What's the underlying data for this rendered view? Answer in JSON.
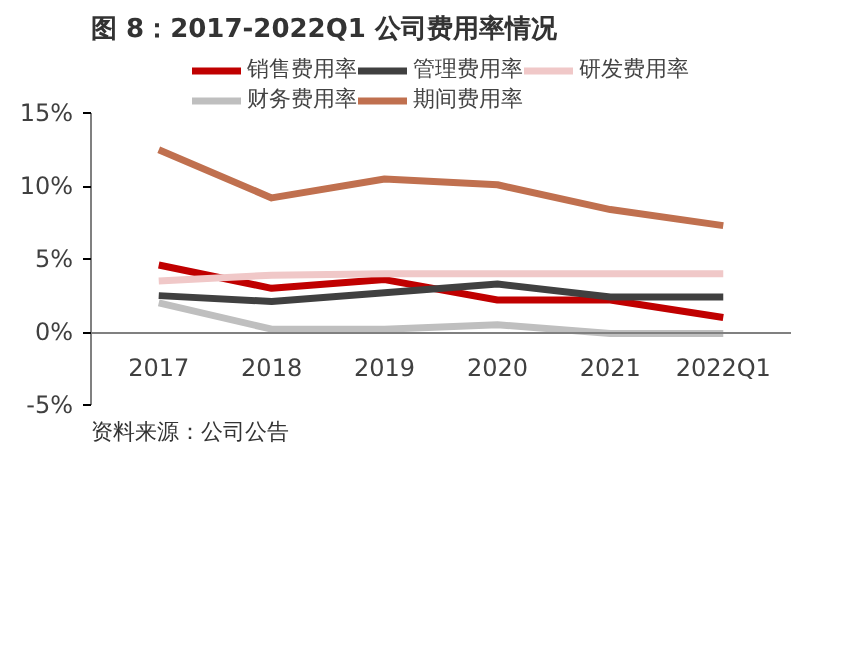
{
  "chart_data": {
    "type": "line",
    "title": "图 8：2017-2022Q1 公司费用率情况",
    "categories": [
      "2017",
      "2018",
      "2019",
      "2020",
      "2021",
      "2022Q1"
    ],
    "series": [
      {
        "name": "销售费用率",
        "color": "#c00000",
        "values": [
          4.6,
          3.0,
          3.6,
          2.2,
          2.2,
          1.0
        ]
      },
      {
        "name": "管理费用率",
        "color": "#404040",
        "values": [
          2.5,
          2.1,
          2.7,
          3.3,
          2.4,
          2.4
        ]
      },
      {
        "name": "研发费用率",
        "color": "#f0c8c8",
        "values": [
          3.5,
          3.9,
          4.0,
          4.0,
          4.0,
          4.0
        ]
      },
      {
        "name": "财务费用率",
        "color": "#bfbfbf",
        "values": [
          2.0,
          0.2,
          0.2,
          0.5,
          -0.1,
          -0.1
        ]
      },
      {
        "name": "期间费用率",
        "color": "#c0704f",
        "values": [
          12.5,
          9.2,
          10.5,
          10.1,
          8.4,
          7.3
        ]
      }
    ],
    "ylim": [
      -5,
      15
    ],
    "yticks": [
      {
        "value": -5,
        "label": "-5%"
      },
      {
        "value": 0,
        "label": "0%"
      },
      {
        "value": 5,
        "label": "5%"
      },
      {
        "value": 10,
        "label": "10%"
      },
      {
        "value": 15,
        "label": "15%"
      }
    ],
    "grid": false,
    "legend": "top",
    "marker": "none",
    "line_style": "solid",
    "annotations": [
      "资料来源：公司公告"
    ]
  }
}
